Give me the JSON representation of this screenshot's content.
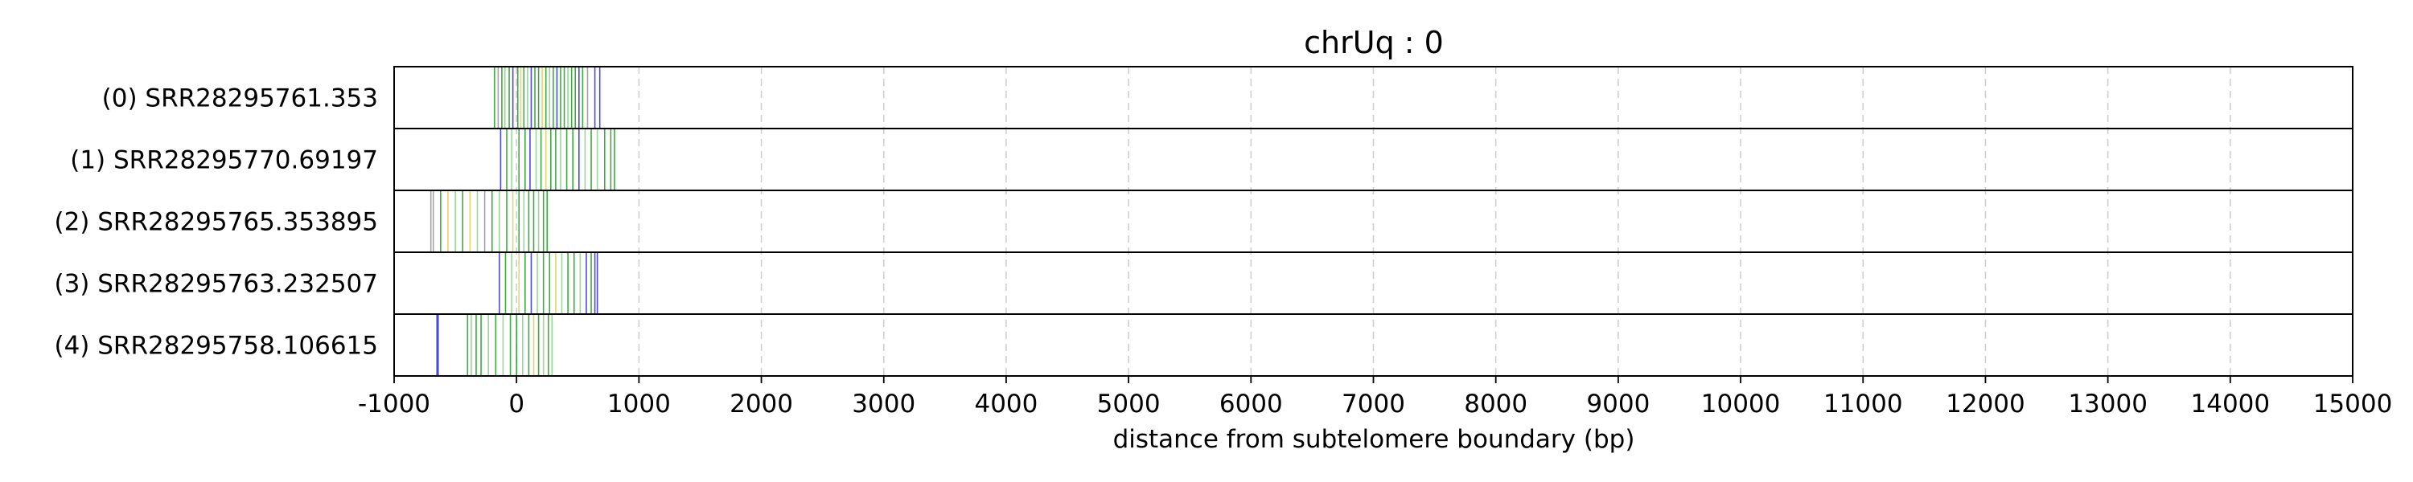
{
  "chart_data": {
    "type": "line",
    "title": "chrUq : 0",
    "xlabel": "distance from subtelomere boundary (bp)",
    "ylabel": "",
    "xlim": [
      -1000,
      15000
    ],
    "xticks": [
      "-1000",
      "0",
      "1000",
      "2000",
      "3000",
      "4000",
      "5000",
      "6000",
      "7000",
      "8000",
      "9000",
      "10000",
      "11000",
      "12000",
      "13000",
      "14000",
      "15000"
    ],
    "grid": "vertical dashed",
    "colors": {
      "green": "#2ca02c",
      "lightgreen": "#8fd18f",
      "blue": "#3a3acc",
      "yellow": "#e0d060",
      "gray": "#999999",
      "frame": "#000000"
    },
    "tracks": [
      {
        "label": "(0) SRR28295761.353",
        "marks": [
          {
            "x": -180,
            "c": "green"
          },
          {
            "x": -150,
            "c": "gray"
          },
          {
            "x": -120,
            "c": "green"
          },
          {
            "x": -95,
            "c": "lightgreen"
          },
          {
            "x": -60,
            "c": "green"
          },
          {
            "x": -30,
            "c": "blue"
          },
          {
            "x": 10,
            "c": "green"
          },
          {
            "x": 35,
            "c": "yellow"
          },
          {
            "x": 60,
            "c": "green"
          },
          {
            "x": 90,
            "c": "lightgreen"
          },
          {
            "x": 120,
            "c": "blue"
          },
          {
            "x": 150,
            "c": "green"
          },
          {
            "x": 180,
            "c": "green"
          },
          {
            "x": 210,
            "c": "yellow"
          },
          {
            "x": 240,
            "c": "green"
          },
          {
            "x": 270,
            "c": "lightgreen"
          },
          {
            "x": 300,
            "c": "green"
          },
          {
            "x": 330,
            "c": "blue"
          },
          {
            "x": 360,
            "c": "green"
          },
          {
            "x": 390,
            "c": "green"
          },
          {
            "x": 420,
            "c": "lightgreen"
          },
          {
            "x": 450,
            "c": "green"
          },
          {
            "x": 480,
            "c": "green"
          },
          {
            "x": 510,
            "c": "blue"
          },
          {
            "x": 540,
            "c": "green"
          },
          {
            "x": 580,
            "c": "gray"
          },
          {
            "x": 640,
            "c": "blue"
          },
          {
            "x": 680,
            "c": "blue"
          }
        ]
      },
      {
        "label": "(1) SRR28295770.69197",
        "marks": [
          {
            "x": -130,
            "c": "blue"
          },
          {
            "x": -80,
            "c": "green"
          },
          {
            "x": -40,
            "c": "lightgreen"
          },
          {
            "x": 20,
            "c": "green"
          },
          {
            "x": 70,
            "c": "green"
          },
          {
            "x": 110,
            "c": "blue"
          },
          {
            "x": 160,
            "c": "lightgreen"
          },
          {
            "x": 200,
            "c": "green"
          },
          {
            "x": 240,
            "c": "yellow"
          },
          {
            "x": 280,
            "c": "green"
          },
          {
            "x": 320,
            "c": "green"
          },
          {
            "x": 360,
            "c": "lightgreen"
          },
          {
            "x": 410,
            "c": "green"
          },
          {
            "x": 460,
            "c": "green"
          },
          {
            "x": 510,
            "c": "blue"
          },
          {
            "x": 560,
            "c": "lightgreen"
          },
          {
            "x": 610,
            "c": "green"
          },
          {
            "x": 660,
            "c": "lightgreen"
          },
          {
            "x": 720,
            "c": "green"
          },
          {
            "x": 770,
            "c": "green"
          },
          {
            "x": 800,
            "c": "green"
          }
        ]
      },
      {
        "label": "(2) SRR28295765.353895",
        "marks": [
          {
            "x": -700,
            "c": "gray"
          },
          {
            "x": -680,
            "c": "gray"
          },
          {
            "x": -620,
            "c": "green"
          },
          {
            "x": -560,
            "c": "yellow"
          },
          {
            "x": -500,
            "c": "lightgreen"
          },
          {
            "x": -440,
            "c": "green"
          },
          {
            "x": -380,
            "c": "yellow"
          },
          {
            "x": -320,
            "c": "lightgreen"
          },
          {
            "x": -260,
            "c": "gray"
          },
          {
            "x": -200,
            "c": "green"
          },
          {
            "x": -140,
            "c": "lightgreen"
          },
          {
            "x": -80,
            "c": "green"
          },
          {
            "x": -30,
            "c": "yellow"
          },
          {
            "x": 20,
            "c": "green"
          },
          {
            "x": 60,
            "c": "lightgreen"
          },
          {
            "x": 100,
            "c": "green"
          },
          {
            "x": 140,
            "c": "green"
          },
          {
            "x": 180,
            "c": "lightgreen"
          },
          {
            "x": 220,
            "c": "green"
          },
          {
            "x": 250,
            "c": "green"
          }
        ]
      },
      {
        "label": "(3) SRR28295763.232507",
        "marks": [
          {
            "x": -140,
            "c": "blue"
          },
          {
            "x": -90,
            "c": "green"
          },
          {
            "x": -40,
            "c": "lightgreen"
          },
          {
            "x": 20,
            "c": "yellow"
          },
          {
            "x": 70,
            "c": "green"
          },
          {
            "x": 120,
            "c": "blue"
          },
          {
            "x": 170,
            "c": "lightgreen"
          },
          {
            "x": 220,
            "c": "green"
          },
          {
            "x": 270,
            "c": "green"
          },
          {
            "x": 320,
            "c": "yellow"
          },
          {
            "x": 370,
            "c": "lightgreen"
          },
          {
            "x": 420,
            "c": "green"
          },
          {
            "x": 470,
            "c": "green"
          },
          {
            "x": 520,
            "c": "lightgreen"
          },
          {
            "x": 570,
            "c": "blue"
          },
          {
            "x": 610,
            "c": "green"
          },
          {
            "x": 640,
            "c": "blue"
          },
          {
            "x": 660,
            "c": "blue"
          }
        ]
      },
      {
        "label": "(4) SRR28295758.106615",
        "marks": [
          {
            "x": -650,
            "c": "blue"
          },
          {
            "x": -640,
            "c": "blue"
          },
          {
            "x": -400,
            "c": "green"
          },
          {
            "x": -370,
            "c": "lightgreen"
          },
          {
            "x": -330,
            "c": "green"
          },
          {
            "x": -290,
            "c": "green"
          },
          {
            "x": -230,
            "c": "lightgreen"
          },
          {
            "x": -170,
            "c": "green"
          },
          {
            "x": -110,
            "c": "lightgreen"
          },
          {
            "x": -50,
            "c": "green"
          },
          {
            "x": 0,
            "c": "green"
          },
          {
            "x": 50,
            "c": "lightgreen"
          },
          {
            "x": 100,
            "c": "green"
          },
          {
            "x": 140,
            "c": "yellow"
          },
          {
            "x": 180,
            "c": "green"
          },
          {
            "x": 220,
            "c": "lightgreen"
          },
          {
            "x": 260,
            "c": "green"
          },
          {
            "x": 290,
            "c": "lightgreen"
          }
        ]
      }
    ]
  }
}
